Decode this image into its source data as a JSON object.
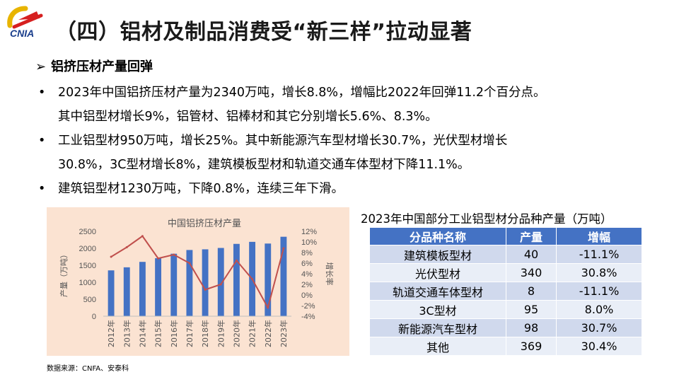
{
  "logo": {
    "text": "CNIA"
  },
  "title": "（四）铝材及制品消费受“新三样”拉动显著",
  "subheading": "铝挤压材产量回弹",
  "bullets": [
    {
      "lines": [
        "2023年中国铝挤压材产量为2340万吨，增长8.8%，增幅比2022年回弹11.2个百分点。",
        "其中铝型材增长9%，铝管材、铝棒材和其它分别增长5.6%、8.3%。"
      ]
    },
    {
      "lines": [
        "工业铝型材950万吨，增长25%。其中新能源汽车型材增长30.7%，光伏型材增长",
        "30.8%，3C型材增长8%，建筑模板型材和轨道交通车体型材下降11.1%。"
      ]
    },
    {
      "lines": [
        "建筑铝型材1230万吨，下降0.8%，连续三年下滑。"
      ]
    }
  ],
  "chart_data": {
    "type": "bar",
    "title": "中国铝挤压材产量",
    "ylabel": "产量（万吨）",
    "y2label": "增长率",
    "categories": [
      "2012年",
      "2013年",
      "2014年",
      "2015年",
      "2016年",
      "2017年",
      "2018年",
      "2019年",
      "2020年",
      "2021年",
      "2022年",
      "2023年"
    ],
    "series": [
      {
        "name": "产量",
        "type": "bar",
        "axis": "left",
        "color": "#4472c4",
        "values": [
          1350,
          1440,
          1600,
          1710,
          1840,
          1950,
          1970,
          2010,
          2130,
          2190,
          2140,
          2340
        ]
      },
      {
        "name": "增长率",
        "type": "line",
        "axis": "right",
        "color": "#c0504d",
        "values": [
          7.2,
          9.0,
          11.1,
          6.9,
          7.6,
          6.0,
          1.0,
          2.0,
          6.5,
          3.0,
          -2.4,
          8.8
        ]
      }
    ],
    "ylim": [
      0,
      2500
    ],
    "yticks": [
      "0",
      "500",
      "1000",
      "1500",
      "2000",
      "2500"
    ],
    "y2lim": [
      -4,
      12
    ],
    "y2ticks": [
      "-4%",
      "-2%",
      "0%",
      "2%",
      "4%",
      "6%",
      "8%",
      "10%",
      "12%"
    ],
    "grid": false,
    "background": "#fbe3d2"
  },
  "source": "数据来源：CNFA、安泰科",
  "table": {
    "title": "2023年中国部分工业铝型材分品种产量（万吨）",
    "headers": [
      "分品种名称",
      "产量",
      "增幅"
    ],
    "rows": [
      [
        "建筑模板型材",
        "40",
        "-11.1%"
      ],
      [
        "光伏型材",
        "340",
        "30.8%"
      ],
      [
        "轨道交通车体型材",
        "8",
        "-11.1%"
      ],
      [
        "3C型材",
        "95",
        "8.0%"
      ],
      [
        "新能源汽车型材",
        "98",
        "30.7%"
      ],
      [
        "其他",
        "369",
        "30.4%"
      ]
    ],
    "header_color": "#4472c4"
  }
}
